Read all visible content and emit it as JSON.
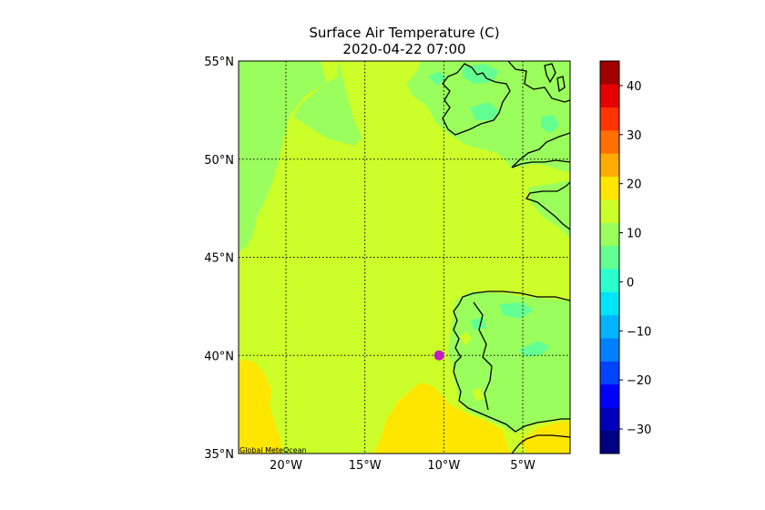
{
  "title": {
    "line1": "Surface Air Temperature (C)",
    "line2": "2020-04-22 07:00"
  },
  "map": {
    "lon_range": [
      -23,
      -2
    ],
    "lat_range": [
      35,
      55
    ],
    "lat_ticks": [
      {
        "value": 55,
        "label": "55°N"
      },
      {
        "value": 50,
        "label": "50°N"
      },
      {
        "value": 45,
        "label": "45°N"
      },
      {
        "value": 40,
        "label": "40°N"
      },
      {
        "value": 35,
        "label": "35°N"
      }
    ],
    "lon_ticks": [
      {
        "value": -20,
        "label": "20°W"
      },
      {
        "value": -15,
        "label": "15°W"
      },
      {
        "value": -10,
        "label": "10°W"
      },
      {
        "value": -5,
        "label": "5°W"
      }
    ],
    "gridlines": "dotted",
    "marker": {
      "lon": -10.3,
      "lat": 40.0,
      "color": "#c21cc2"
    },
    "watermark": "Global MeteOcean"
  },
  "colorbar": {
    "range": [
      -35,
      45
    ],
    "step": 5,
    "tick_labels": [
      {
        "value": 40,
        "label": "40"
      },
      {
        "value": 30,
        "label": "30"
      },
      {
        "value": 20,
        "label": "20"
      },
      {
        "value": 10,
        "label": "10"
      },
      {
        "value": 0,
        "label": "0"
      },
      {
        "value": -10,
        "label": "−10"
      },
      {
        "value": -20,
        "label": "−20"
      },
      {
        "value": -30,
        "label": "−30"
      }
    ],
    "colors": [
      "#000080",
      "#0000b8",
      "#0000ff",
      "#0044ff",
      "#0080ff",
      "#00b4ff",
      "#00e4f8",
      "#2bffce",
      "#64ff93",
      "#9aff5c",
      "#ccff2a",
      "#ffe600",
      "#ffac00",
      "#ff7000",
      "#ff3400",
      "#e60000",
      "#a20000"
    ]
  },
  "chart_data": {
    "type": "heatmap",
    "variable": "Surface Air Temperature (C)",
    "region_values_c": {
      "open_atlantic": 12.5,
      "northwest_ocean": 7.5,
      "ireland_britain": 5,
      "iberia_interior": 7.5,
      "southwest_ocean": 17.5
    }
  }
}
